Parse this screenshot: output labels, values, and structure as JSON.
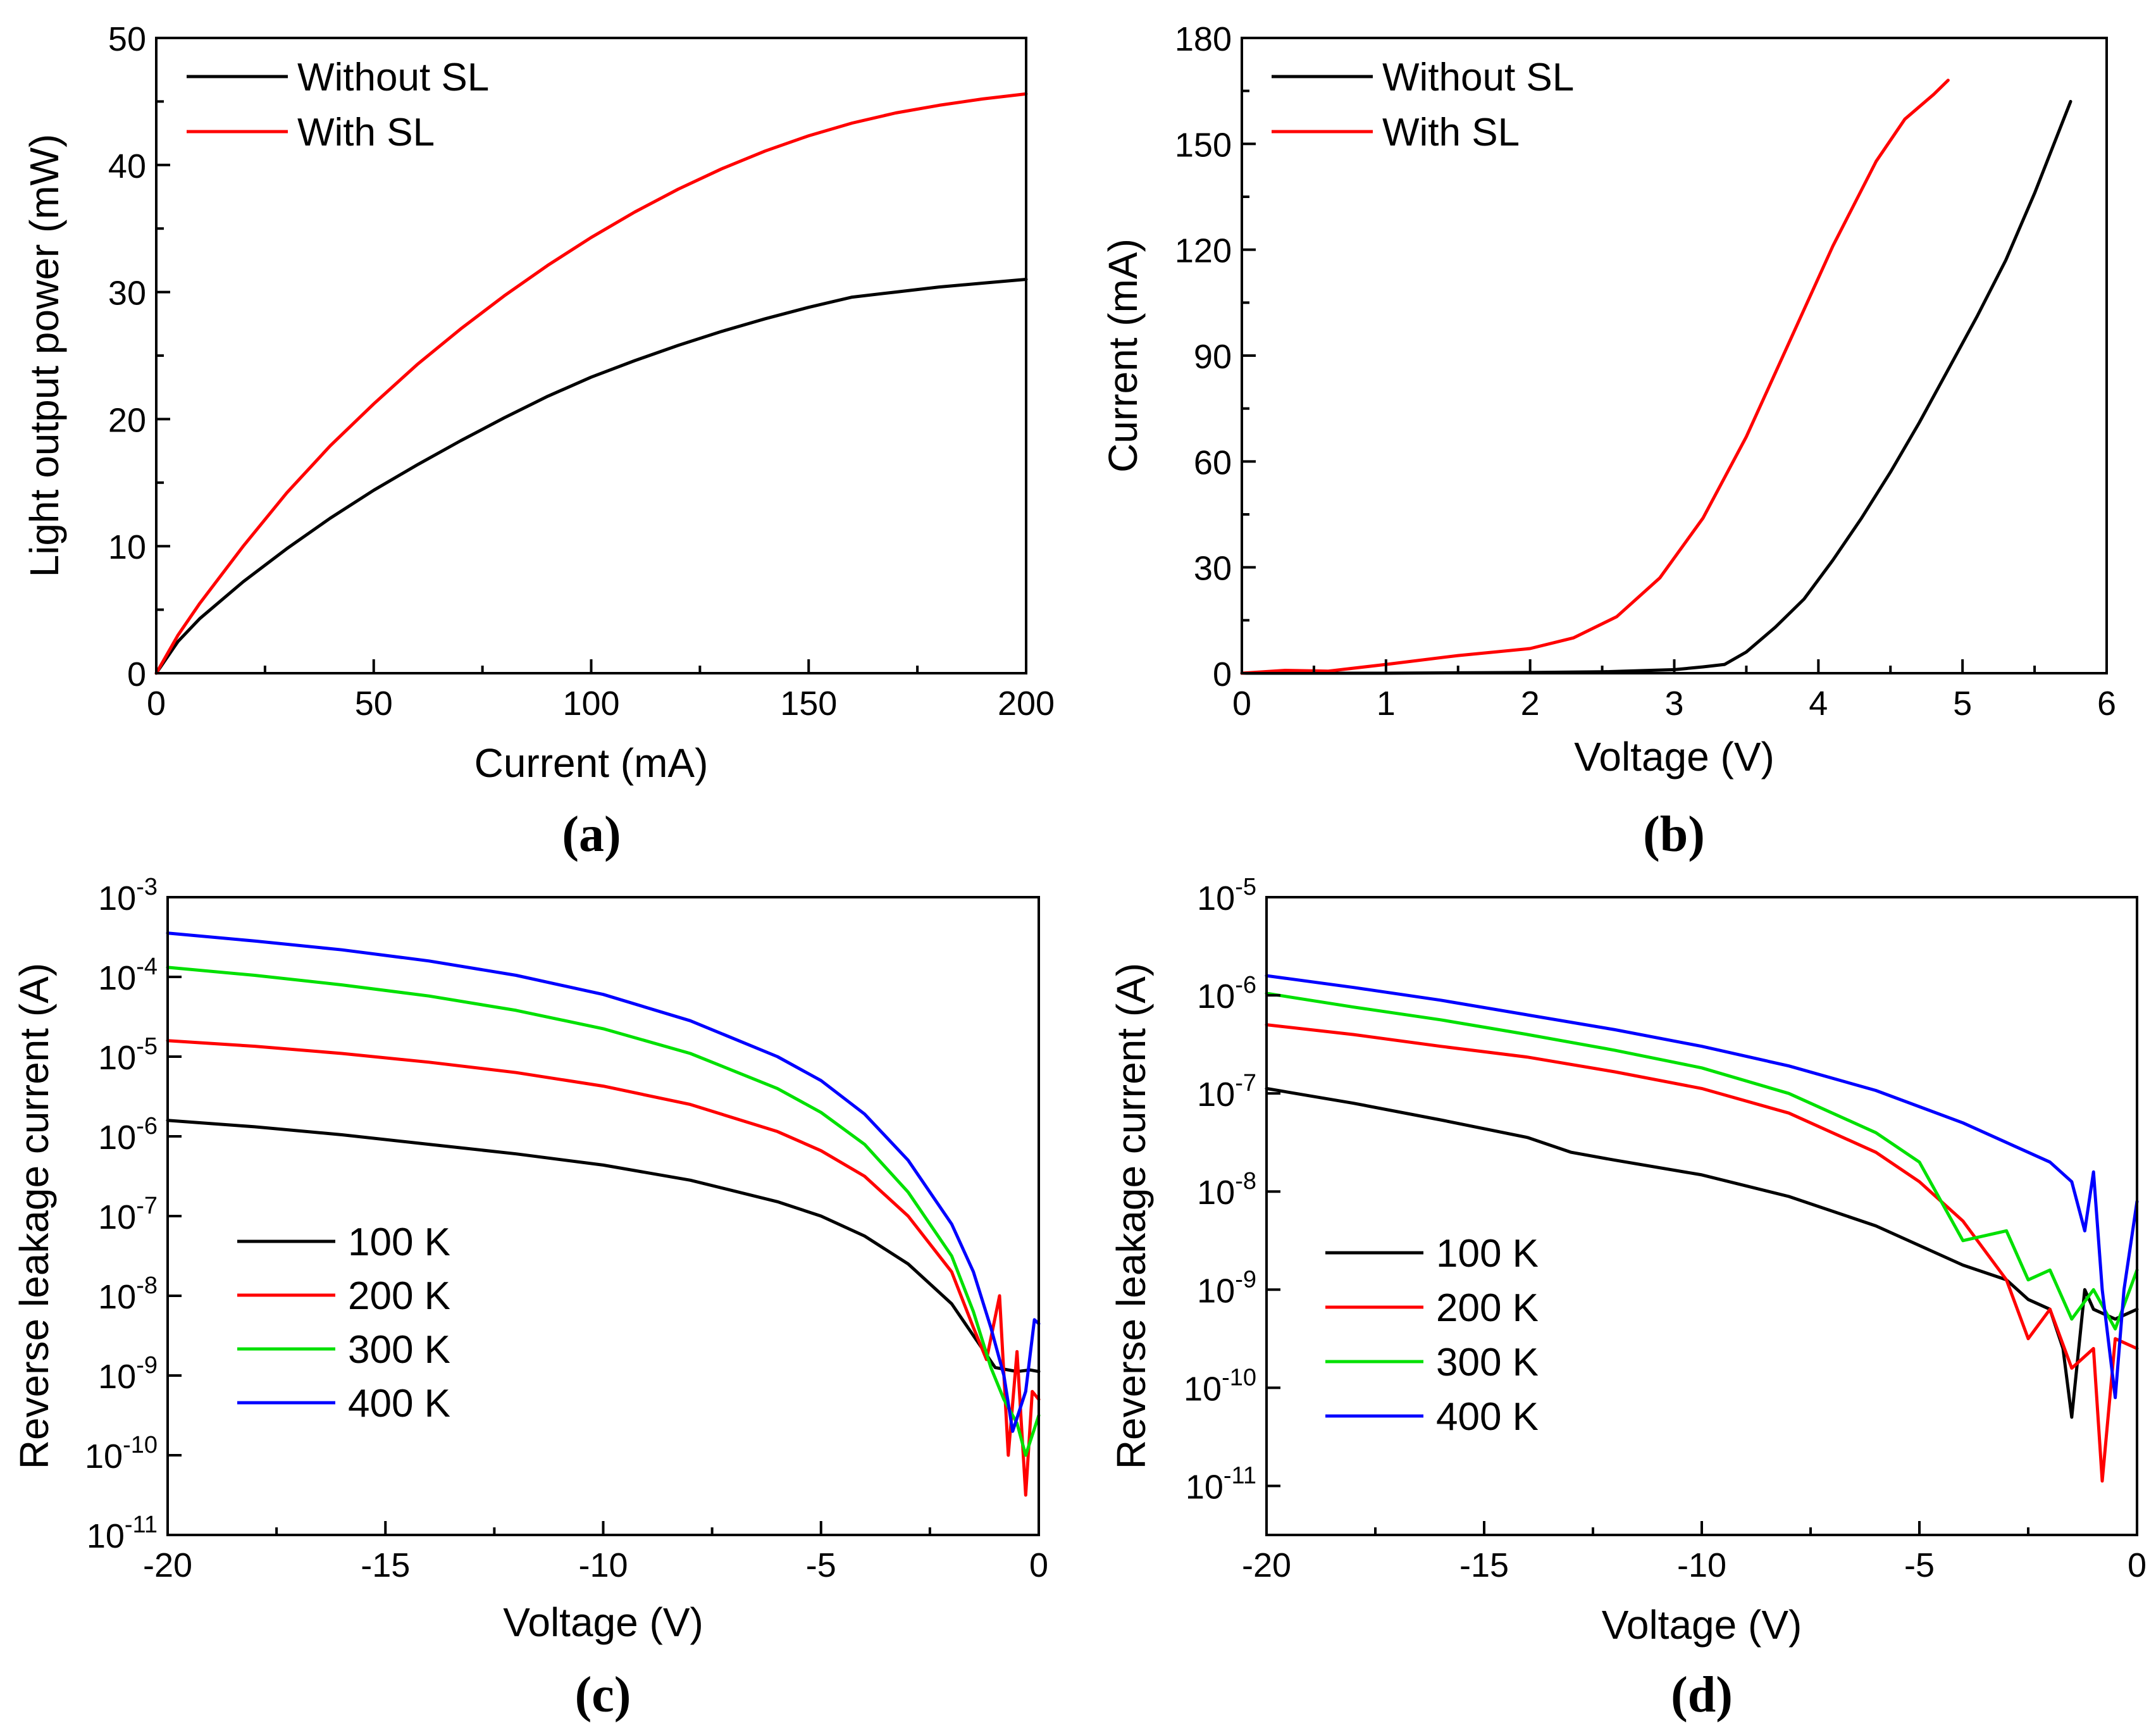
{
  "chart_data": [
    {
      "panel": "(a)",
      "type": "line",
      "xlabel": "Current (mA)",
      "ylabel": "Light output power (mW)",
      "xlim": [
        0,
        200
      ],
      "ylim": [
        0,
        50
      ],
      "xticks": [
        0,
        50,
        100,
        150,
        200
      ],
      "xtick_labels": [
        "0",
        "50",
        "100",
        "150",
        "200"
      ],
      "yticks": [
        0,
        10,
        20,
        30,
        40,
        50
      ],
      "ytick_labels": [
        "0",
        "10",
        "20",
        "30",
        "40",
        "50"
      ],
      "legend_position": "top-left",
      "series": [
        {
          "name": "Without SL",
          "color": "#000000",
          "x": [
            0,
            5,
            10,
            20,
            30,
            40,
            50,
            60,
            70,
            80,
            90,
            100,
            110,
            120,
            130,
            140,
            150,
            160,
            170,
            180,
            190,
            200
          ],
          "y": [
            0,
            2.5,
            4.3,
            7.2,
            9.8,
            12.2,
            14.4,
            16.4,
            18.3,
            20.1,
            21.8,
            23.3,
            24.6,
            25.8,
            26.9,
            27.9,
            28.8,
            29.6,
            30.0,
            30.4,
            30.7,
            31.0
          ]
        },
        {
          "name": "With SL",
          "color": "#ff0000",
          "x": [
            0,
            5,
            10,
            20,
            30,
            40,
            50,
            60,
            70,
            80,
            90,
            100,
            110,
            120,
            130,
            140,
            150,
            160,
            170,
            180,
            190,
            200
          ],
          "y": [
            0,
            3.0,
            5.5,
            10.0,
            14.2,
            17.9,
            21.2,
            24.3,
            27.1,
            29.7,
            32.1,
            34.3,
            36.3,
            38.1,
            39.7,
            41.1,
            42.3,
            43.3,
            44.1,
            44.7,
            45.2,
            45.6
          ]
        }
      ]
    },
    {
      "panel": "(b)",
      "type": "line",
      "xlabel": "Voltage (V)",
      "ylabel": "Current (mA)",
      "xlim": [
        0,
        6
      ],
      "ylim": [
        0,
        180
      ],
      "xticks": [
        0,
        1,
        2,
        3,
        4,
        5,
        6
      ],
      "xtick_labels": [
        "0",
        "1",
        "2",
        "3",
        "4",
        "5",
        "6"
      ],
      "yticks": [
        0,
        30,
        60,
        90,
        120,
        150,
        180
      ],
      "ytick_labels": [
        "0",
        "30",
        "60",
        "90",
        "120",
        "150",
        "180"
      ],
      "legend_position": "top-left",
      "series": [
        {
          "name": "Without SL",
          "color": "#000000",
          "x": [
            0,
            0.5,
            1.0,
            1.5,
            2.0,
            2.5,
            3.0,
            3.2,
            3.35,
            3.5,
            3.7,
            3.9,
            4.1,
            4.3,
            4.5,
            4.7,
            4.9,
            5.1,
            5.3,
            5.5,
            5.75
          ],
          "y": [
            0,
            0,
            0,
            0.1,
            0.2,
            0.4,
            1.0,
            1.8,
            2.5,
            6,
            13,
            21,
            32,
            44,
            57,
            71,
            86,
            101,
            117,
            136,
            162
          ]
        },
        {
          "name": "With SL",
          "color": "#ff0000",
          "x": [
            0,
            0.3,
            0.6,
            1.0,
            1.5,
            2.0,
            2.3,
            2.6,
            2.9,
            3.2,
            3.5,
            3.8,
            4.1,
            4.4,
            4.6,
            4.8,
            4.9
          ],
          "y": [
            0,
            0.8,
            0.6,
            2.5,
            5,
            7,
            10,
            16,
            27,
            44,
            67,
            94,
            121,
            145,
            157,
            164,
            168
          ]
        }
      ]
    },
    {
      "panel": "(c)",
      "type": "line",
      "yscale": "log",
      "xlabel": "Voltage (V)",
      "ylabel": "Reverse leakage current (A)",
      "xlim": [
        -20,
        0
      ],
      "ylim_exp": [
        -11,
        -3
      ],
      "xticks": [
        -20,
        -15,
        -10,
        -5,
        0
      ],
      "xtick_labels": [
        "-20",
        "-15",
        "-10",
        "-5",
        "0"
      ],
      "yticks_exp": [
        -11,
        -10,
        -9,
        -8,
        -7,
        -6,
        -5,
        -4,
        -3
      ],
      "ytick_labels": [
        "10-11",
        "10-10",
        "10-9",
        "10-8",
        "10-7",
        "10-6",
        "10-5",
        "10-4",
        "10-3"
      ],
      "legend_position": "bottom-left",
      "series": [
        {
          "name": "100 K",
          "color": "#000000",
          "x": [
            -20,
            -18,
            -16,
            -14,
            -12,
            -10,
            -8,
            -6,
            -5,
            -4,
            -3,
            -2,
            -1.5,
            -1,
            -0.5,
            -0.2,
            0
          ],
          "log_y": [
            -5.8,
            -5.88,
            -5.98,
            -6.1,
            -6.22,
            -6.36,
            -6.55,
            -6.82,
            -7.0,
            -7.25,
            -7.6,
            -8.1,
            -8.5,
            -8.9,
            -8.95,
            -8.93,
            -8.95
          ]
        },
        {
          "name": "200 K",
          "color": "#ff0000",
          "x": [
            -20,
            -18,
            -16,
            -14,
            -12,
            -10,
            -8,
            -6,
            -5,
            -4,
            -3,
            -2,
            -1.5,
            -1.2,
            -0.9,
            -0.7,
            -0.5,
            -0.3,
            -0.15,
            0
          ],
          "log_y": [
            -4.8,
            -4.87,
            -4.96,
            -5.07,
            -5.2,
            -5.37,
            -5.6,
            -5.94,
            -6.18,
            -6.5,
            -7.0,
            -7.7,
            -8.4,
            -8.8,
            -8.0,
            -10.0,
            -8.7,
            -10.5,
            -9.2,
            -9.3
          ]
        },
        {
          "name": "300 K",
          "color": "#00e000",
          "x": [
            -20,
            -18,
            -16,
            -14,
            -12,
            -10,
            -8,
            -6,
            -5,
            -4,
            -3,
            -2,
            -1.5,
            -1.1,
            -0.8,
            -0.5,
            -0.3,
            0
          ],
          "log_y": [
            -3.88,
            -3.98,
            -4.1,
            -4.24,
            -4.42,
            -4.65,
            -4.96,
            -5.4,
            -5.7,
            -6.1,
            -6.7,
            -7.5,
            -8.2,
            -8.9,
            -9.3,
            -9.6,
            -10.0,
            -9.5
          ]
        },
        {
          "name": "400 K",
          "color": "#0000ff",
          "x": [
            -20,
            -18,
            -16,
            -14,
            -12,
            -10,
            -8,
            -6,
            -5,
            -4,
            -3,
            -2,
            -1.5,
            -1.1,
            -0.8,
            -0.6,
            -0.3,
            -0.1,
            0
          ],
          "log_y": [
            -3.45,
            -3.55,
            -3.66,
            -3.8,
            -3.98,
            -4.22,
            -4.55,
            -5.0,
            -5.3,
            -5.72,
            -6.3,
            -7.1,
            -7.7,
            -8.4,
            -9.0,
            -9.7,
            -9.2,
            -8.3,
            -8.35
          ]
        }
      ]
    },
    {
      "panel": "(d)",
      "type": "line",
      "yscale": "log",
      "xlabel": "Voltage (V)",
      "ylabel": "Reverse leakage current (A)",
      "xlim": [
        -20,
        0
      ],
      "ylim_exp": [
        -11.5,
        -5
      ],
      "xticks": [
        -20,
        -15,
        -10,
        -5,
        0
      ],
      "xtick_labels": [
        "-20",
        "-15",
        "-10",
        "-5",
        "0"
      ],
      "yticks_exp": [
        -11,
        -10,
        -9,
        -8,
        -7,
        -6,
        -5
      ],
      "ytick_labels": [
        "10-11",
        "10-10",
        "10-9",
        "10-8",
        "10-7",
        "10-6",
        "10-5"
      ],
      "legend_position": "bottom-left",
      "series": [
        {
          "name": "100 K",
          "color": "#000000",
          "x": [
            -20,
            -18,
            -16,
            -14,
            -13,
            -12,
            -10,
            -8,
            -6,
            -5,
            -4,
            -3,
            -2.5,
            -2,
            -1.7,
            -1.5,
            -1.2,
            -1,
            -0.5,
            0
          ],
          "log_y": [
            -6.95,
            -7.1,
            -7.27,
            -7.45,
            -7.6,
            -7.68,
            -7.83,
            -8.05,
            -8.35,
            -8.55,
            -8.75,
            -8.9,
            -9.1,
            -9.2,
            -9.6,
            -10.3,
            -9.0,
            -9.2,
            -9.3,
            -9.2
          ]
        },
        {
          "name": "200 K",
          "color": "#ff0000",
          "x": [
            -20,
            -18,
            -16,
            -14,
            -12,
            -10,
            -8,
            -6,
            -5,
            -4,
            -3,
            -2.5,
            -2,
            -1.5,
            -1,
            -0.8,
            -0.5,
            0
          ],
          "log_y": [
            -6.3,
            -6.4,
            -6.52,
            -6.63,
            -6.78,
            -6.95,
            -7.2,
            -7.6,
            -7.9,
            -8.3,
            -8.9,
            -9.5,
            -9.2,
            -9.8,
            -9.6,
            -10.95,
            -9.5,
            -9.6
          ]
        },
        {
          "name": "300 K",
          "color": "#00e000",
          "x": [
            -20,
            -18,
            -16,
            -14,
            -12,
            -10,
            -8,
            -6,
            -5,
            -4,
            -3,
            -2.5,
            -2,
            -1.5,
            -1,
            -0.5,
            0
          ],
          "log_y": [
            -5.98,
            -6.12,
            -6.25,
            -6.4,
            -6.56,
            -6.74,
            -7.0,
            -7.4,
            -7.7,
            -8.5,
            -8.4,
            -8.9,
            -8.8,
            -9.3,
            -9.0,
            -9.4,
            -8.8
          ]
        },
        {
          "name": "400 K",
          "color": "#0000ff",
          "x": [
            -20,
            -18,
            -16,
            -14,
            -12,
            -10,
            -8,
            -6,
            -4,
            -3,
            -2,
            -1.5,
            -1.2,
            -1,
            -0.8,
            -0.5,
            -0.3,
            0
          ],
          "log_y": [
            -5.8,
            -5.92,
            -6.05,
            -6.2,
            -6.35,
            -6.52,
            -6.72,
            -6.97,
            -7.3,
            -7.5,
            -7.7,
            -7.9,
            -8.4,
            -7.8,
            -9.0,
            -10.1,
            -9.0,
            -8.1
          ]
        }
      ]
    }
  ]
}
